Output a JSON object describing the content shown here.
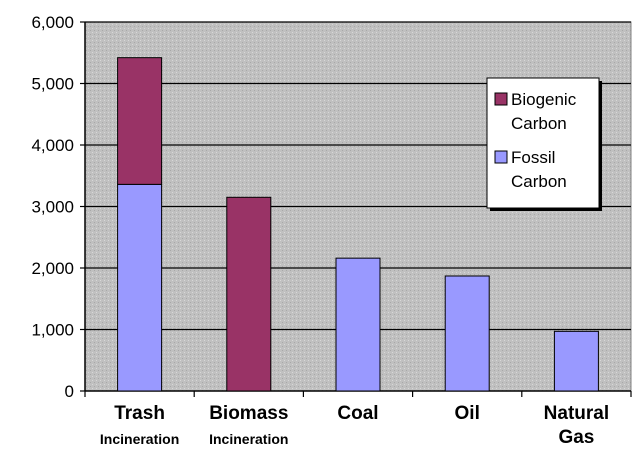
{
  "chart_data": {
    "type": "bar",
    "stacked": true,
    "categories": [
      {
        "line1": "Trash",
        "line2": "Incineration"
      },
      {
        "line1": "Biomass",
        "line2": "Incineration"
      },
      {
        "line1": "Coal",
        "line2": ""
      },
      {
        "line1": "Oil",
        "line2": ""
      },
      {
        "line1": "Natural",
        "line2": "Gas"
      }
    ],
    "series": [
      {
        "name": "Fossil Carbon",
        "legend_lines": [
          "Fossil",
          "Carbon"
        ],
        "color": "#9999ff",
        "values": [
          3360,
          0,
          2160,
          1870,
          970
        ]
      },
      {
        "name": "Biogenic Carbon",
        "legend_lines": [
          "Biogenic",
          "Carbon"
        ],
        "color": "#993366",
        "values": [
          2060,
          3150,
          0,
          0,
          0
        ]
      }
    ],
    "ylim": [
      0,
      6000
    ],
    "yticks": [
      0,
      1000,
      2000,
      3000,
      4000,
      5000,
      6000
    ],
    "ytick_labels": [
      "0",
      "1,000",
      "2,000",
      "3,000",
      "4,000",
      "5,000",
      "6,000"
    ],
    "grid": true,
    "plot_background": "#c0c0c0",
    "legend_placement": "right"
  }
}
